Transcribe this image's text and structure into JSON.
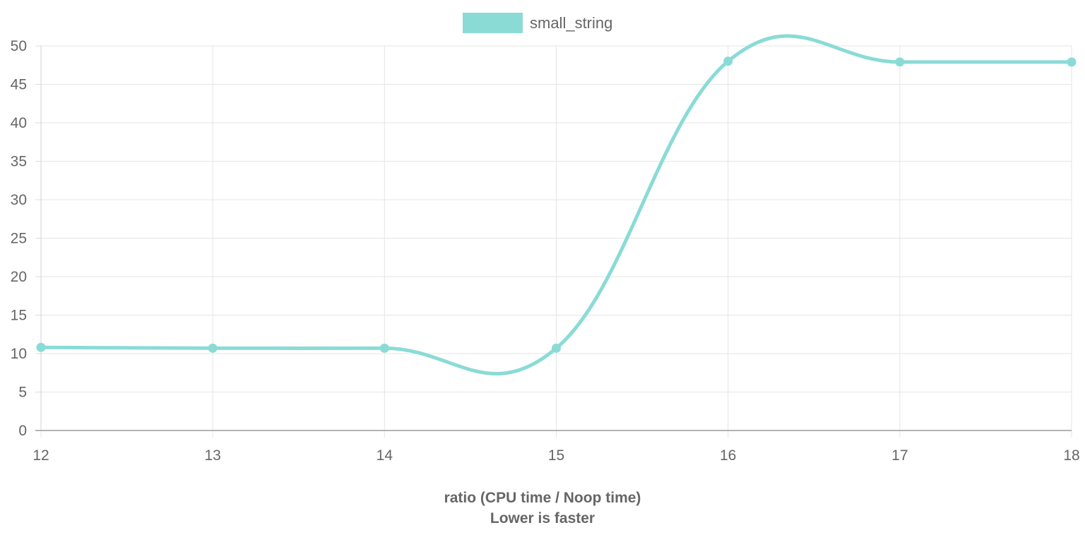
{
  "chart_data": {
    "type": "line",
    "title": "",
    "xlabel": "ratio (CPU time / Noop time)",
    "xlabel_sub": "Lower is faster",
    "ylabel": "",
    "x": [
      12,
      13,
      14,
      15,
      16,
      17,
      18
    ],
    "xlim": [
      12,
      18
    ],
    "ylim": [
      0,
      50
    ],
    "x_ticks": [
      "12",
      "13",
      "14",
      "15",
      "16",
      "17",
      "18"
    ],
    "y_ticks": [
      "0",
      "5",
      "10",
      "15",
      "20",
      "25",
      "30",
      "35",
      "40",
      "45",
      "50"
    ],
    "grid": true,
    "legend_position": "top-center",
    "series": [
      {
        "name": "small_string",
        "color": "#8adbd6",
        "values": [
          10.8,
          10.7,
          10.7,
          10.7,
          48.0,
          47.9,
          47.9
        ]
      }
    ]
  }
}
